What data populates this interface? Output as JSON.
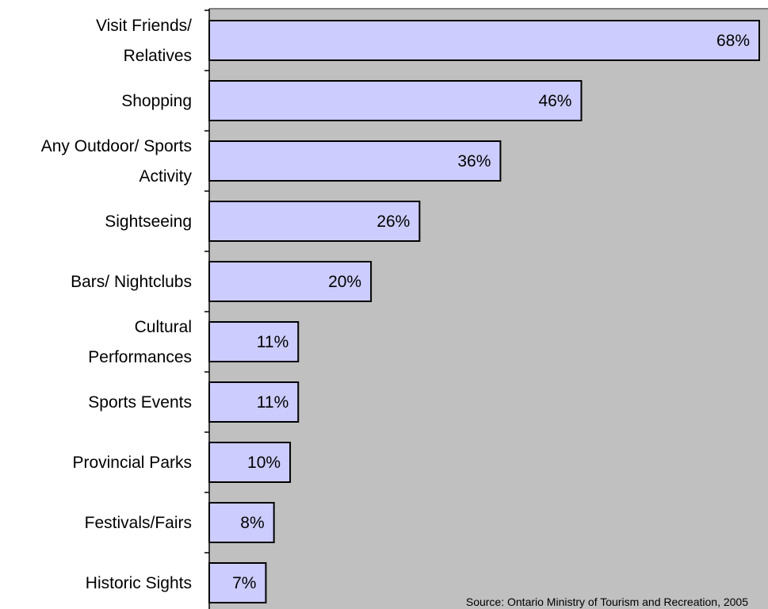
{
  "chart_data": {
    "type": "bar",
    "orientation": "horizontal",
    "categories": [
      "Visit Friends/ Relatives",
      "Shopping",
      "Any Outdoor/ Sports Activity",
      "Sightseeing",
      "Bars/ Nightclubs",
      "Cultural Performances",
      "Sports Events",
      "Provincial Parks",
      "Festivals/Fairs",
      "Historic Sights"
    ],
    "category_lines": [
      [
        "Visit Friends/",
        "Relatives"
      ],
      [
        "Shopping"
      ],
      [
        "Any Outdoor/ Sports",
        "Activity"
      ],
      [
        "Sightseeing"
      ],
      [
        "Bars/ Nightclubs"
      ],
      [
        "Cultural",
        "Performances"
      ],
      [
        "Sports Events"
      ],
      [
        "Provincial Parks"
      ],
      [
        "Festivals/Fairs"
      ],
      [
        "Historic Sights"
      ]
    ],
    "values": [
      68,
      46,
      36,
      26,
      20,
      11,
      11,
      10,
      8,
      7
    ],
    "value_labels": [
      "68%",
      "46%",
      "36%",
      "26%",
      "20%",
      "11%",
      "11%",
      "10%",
      "8%",
      "7%"
    ],
    "title": "",
    "xlabel": "",
    "ylabel": "",
    "xlim": [
      0,
      68
    ],
    "grid": false,
    "legend": "none",
    "source": "Source: Ontario Ministry of Tourism and Recreation,  2005",
    "colors": {
      "bar_fill": "#ccccff",
      "bar_stroke": "#000000",
      "plot_background": "#c0c0c0",
      "page_background": "#ffffff"
    }
  }
}
